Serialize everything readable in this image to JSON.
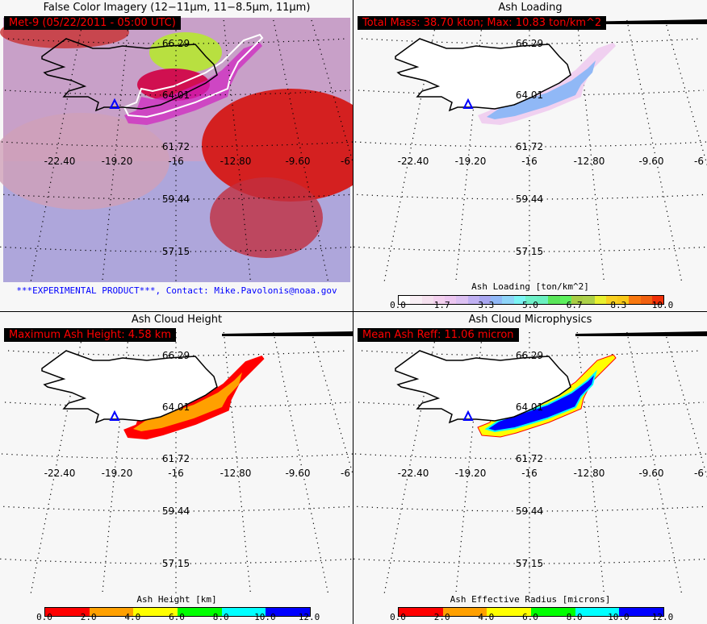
{
  "panels": [
    {
      "title": "False Color Imagery (12−11μm, 11−8.5μm, 11μm)",
      "tag": "Met-9  (05/22/2011 - 05:00 UTC)",
      "caption": "***EXPERIMENTAL PRODUCT***, Contact: Mike.Pavolonis@noaa.gov"
    },
    {
      "title": "Ash Loading",
      "tag": "Total Mass: 38.70 kton; Max: 10.83 ton/km^2",
      "colorbar": {
        "title": "Ash Loading [ton/km^2]",
        "ticks": [
          "0.0",
          "1.7",
          "3.3",
          "5.0",
          "6.7",
          "8.3",
          "10.0"
        ],
        "colors": [
          "#ffffff",
          "#f8eef4",
          "#f5e0ee",
          "#f3d0ee",
          "#ecc6f0",
          "#dcc0f2",
          "#c0b0f2",
          "#a8a6f0",
          "#90b8f6",
          "#8ed4f8",
          "#7cf4f4",
          "#6ef0c8",
          "#6af0c0",
          "#5ae65a",
          "#5cf05c",
          "#a8cc44",
          "#acd048",
          "#e8f030",
          "#f8d020",
          "#f8c818",
          "#f87810",
          "#f06010",
          "#f03008"
        ]
      }
    },
    {
      "title": "Ash Cloud Height",
      "tag": "Maximum Ash Height: 4.58 km",
      "colorbar": {
        "title": "Ash Height [km]",
        "ticks": [
          "0.0",
          "2.0",
          "4.0",
          "6.0",
          "8.0",
          "10.0",
          "12.0"
        ],
        "colors": [
          "#ff0000",
          "#ff0000",
          "#ffa000",
          "#ffa000",
          "#ffff00",
          "#ffff00",
          "#00ff00",
          "#00ff00",
          "#00ffff",
          "#00ffff",
          "#0000ff",
          "#0000ff"
        ]
      }
    },
    {
      "title": "Ash Cloud Microphysics",
      "tag": "Mean Ash Reff: 11.06 micron",
      "colorbar": {
        "title": "Ash Effective Radius [microns]",
        "ticks": [
          "0.0",
          "2.0",
          "4.0",
          "6.0",
          "8.0",
          "10.0",
          "12.0"
        ],
        "colors": [
          "#ff0000",
          "#ff0000",
          "#ffa000",
          "#ffa000",
          "#ffff00",
          "#ffff00",
          "#00ff00",
          "#00ff00",
          "#00ffff",
          "#00ffff",
          "#0000ff",
          "#0000ff"
        ]
      }
    }
  ],
  "grid": {
    "lat_labels": [
      "66.29",
      "64.01",
      "61.72",
      "59.44",
      "57.15"
    ],
    "lon_labels": [
      "-22.40",
      "-19.20",
      "-16",
      "-12.80",
      "-9.60",
      "-6"
    ]
  },
  "colors": {
    "tag_bg": "#000000",
    "tag_text": "#ff0000",
    "caption": "#0000ff",
    "volcano": "#0000ff"
  }
}
